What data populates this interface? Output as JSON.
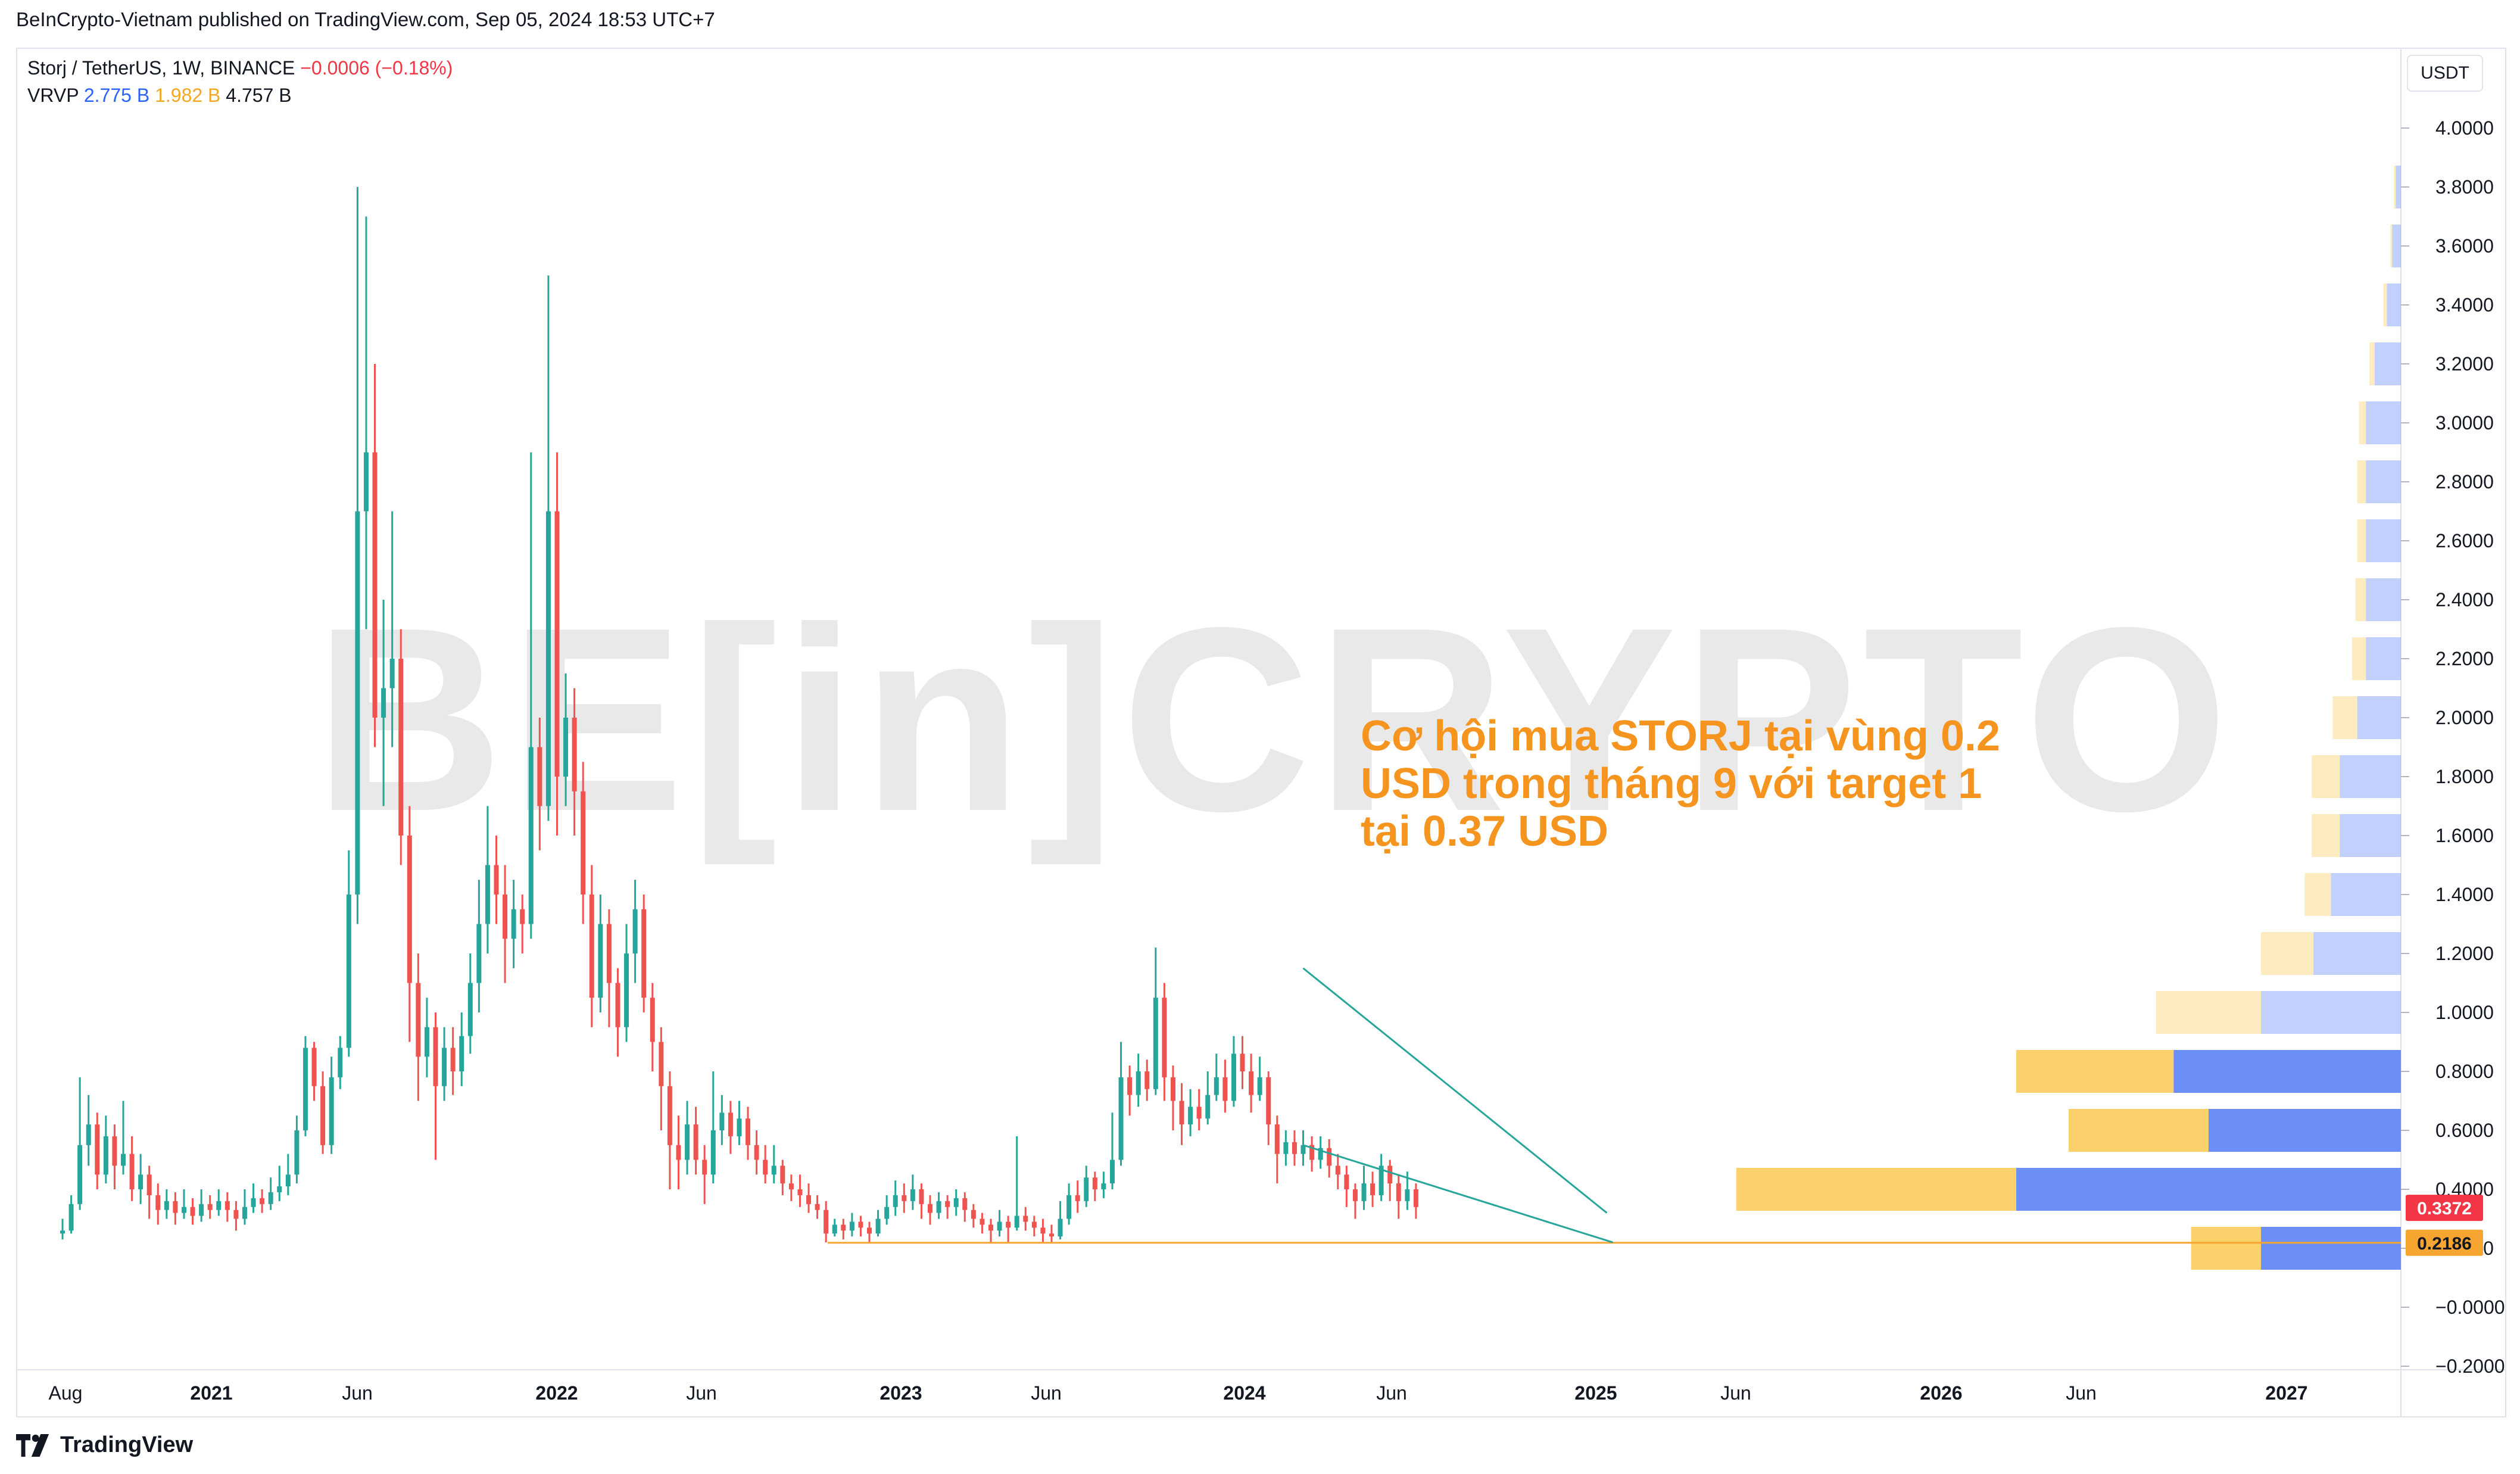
{
  "header": {
    "published": "BeInCrypto-Vietnam published on TradingView.com, Sep 05, 2024 18:53 UTC+7"
  },
  "legend": {
    "symbol": "Storj / TetherUS, 1W, BINANCE",
    "change": "−0.0006 (−0.18%)",
    "indicator": "VRVP",
    "vol_up": "2.775 B",
    "vol_down": "1.982 B",
    "vol_total": "4.757 B"
  },
  "currency": "USDT",
  "watermark": "BE[in]CRYPTO",
  "annotation": {
    "line1": "Cơ hội mua STORJ tại vùng 0.2",
    "line2": "USD trong tháng 9 với target 1",
    "line3": "tại 0.37 USD"
  },
  "footer": {
    "brand": "TradingView"
  },
  "colors": {
    "up": "#26a69a",
    "down": "#ef5350",
    "vp_up": "#6b8ff7",
    "vp_down": "#fcd16b",
    "support": "#f7a531",
    "wedge": "#26a69a",
    "annotation": "#f5951f"
  },
  "chart_data": {
    "type": "candlestick",
    "symbol": "STORJ/USDT",
    "interval": "1W",
    "ylim": [
      -0.2,
      4.0
    ],
    "y_ticks": [
      "4.0000",
      "3.8000",
      "3.6000",
      "3.4000",
      "3.2000",
      "3.0000",
      "2.8000",
      "2.6000",
      "2.4000",
      "2.2000",
      "2.0000",
      "1.8000",
      "1.6000",
      "1.4000",
      "1.2000",
      "1.0000",
      "0.8000",
      "0.6000",
      "0.4000",
      "0.2000",
      "−0.0000",
      "−0.2000"
    ],
    "x_ticks": [
      "Aug",
      "2021",
      "Jun",
      "2022",
      "Jun",
      "2023",
      "Jun",
      "2024",
      "Jun",
      "2025",
      "Jun",
      "2026",
      "Jun",
      "2027"
    ],
    "last_price": "0.3372",
    "support_price": "0.2186",
    "support_level": 0.2186,
    "candles_approx": [
      [
        0.25,
        0.26,
        0.3,
        0.23
      ],
      [
        0.26,
        0.35,
        0.38,
        0.25
      ],
      [
        0.35,
        0.55,
        0.78,
        0.33
      ],
      [
        0.55,
        0.62,
        0.72,
        0.48
      ],
      [
        0.62,
        0.45,
        0.66,
        0.4
      ],
      [
        0.45,
        0.58,
        0.65,
        0.42
      ],
      [
        0.58,
        0.48,
        0.62,
        0.4
      ],
      [
        0.48,
        0.52,
        0.7,
        0.45
      ],
      [
        0.52,
        0.4,
        0.58,
        0.36
      ],
      [
        0.4,
        0.45,
        0.52,
        0.35
      ],
      [
        0.45,
        0.38,
        0.48,
        0.3
      ],
      [
        0.38,
        0.33,
        0.42,
        0.28
      ],
      [
        0.33,
        0.36,
        0.4,
        0.3
      ],
      [
        0.36,
        0.32,
        0.39,
        0.28
      ],
      [
        0.32,
        0.34,
        0.4,
        0.3
      ],
      [
        0.34,
        0.31,
        0.37,
        0.28
      ],
      [
        0.31,
        0.35,
        0.4,
        0.29
      ],
      [
        0.35,
        0.33,
        0.38,
        0.3
      ],
      [
        0.33,
        0.36,
        0.4,
        0.31
      ],
      [
        0.36,
        0.33,
        0.39,
        0.29
      ],
      [
        0.33,
        0.3,
        0.36,
        0.26
      ],
      [
        0.3,
        0.34,
        0.4,
        0.28
      ],
      [
        0.34,
        0.37,
        0.42,
        0.32
      ],
      [
        0.37,
        0.35,
        0.4,
        0.32
      ],
      [
        0.35,
        0.39,
        0.44,
        0.33
      ],
      [
        0.39,
        0.41,
        0.48,
        0.36
      ],
      [
        0.41,
        0.45,
        0.52,
        0.38
      ],
      [
        0.45,
        0.6,
        0.65,
        0.42
      ],
      [
        0.6,
        0.88,
        0.92,
        0.58
      ],
      [
        0.88,
        0.75,
        0.9,
        0.7
      ],
      [
        0.75,
        0.55,
        0.8,
        0.52
      ],
      [
        0.55,
        0.78,
        0.85,
        0.52
      ],
      [
        0.78,
        0.88,
        0.92,
        0.74
      ],
      [
        0.88,
        1.4,
        1.55,
        0.85
      ],
      [
        1.4,
        2.7,
        3.8,
        1.3
      ],
      [
        2.7,
        2.9,
        3.7,
        2.3
      ],
      [
        2.9,
        2.0,
        3.2,
        1.9
      ],
      [
        2.0,
        2.1,
        2.4,
        1.7
      ],
      [
        2.1,
        2.2,
        2.7,
        1.9
      ],
      [
        2.2,
        1.6,
        2.3,
        1.5
      ],
      [
        1.6,
        1.1,
        1.7,
        0.9
      ],
      [
        1.1,
        0.85,
        1.2,
        0.7
      ],
      [
        0.85,
        0.95,
        1.05,
        0.78
      ],
      [
        0.95,
        0.75,
        1.0,
        0.5
      ],
      [
        0.75,
        0.88,
        0.95,
        0.7
      ],
      [
        0.88,
        0.8,
        0.95,
        0.72
      ],
      [
        0.8,
        0.92,
        1.0,
        0.75
      ],
      [
        0.92,
        1.1,
        1.2,
        0.86
      ],
      [
        1.1,
        1.3,
        1.45,
        1.0
      ],
      [
        1.3,
        1.5,
        1.7,
        1.2
      ],
      [
        1.5,
        1.4,
        1.6,
        1.3
      ],
      [
        1.4,
        1.25,
        1.5,
        1.1
      ],
      [
        1.25,
        1.35,
        1.45,
        1.15
      ],
      [
        1.35,
        1.3,
        1.4,
        1.2
      ],
      [
        1.3,
        1.9,
        2.9,
        1.25
      ],
      [
        1.9,
        1.7,
        2.0,
        1.55
      ],
      [
        1.7,
        2.7,
        3.5,
        1.65
      ],
      [
        2.7,
        1.8,
        2.9,
        1.6
      ],
      [
        1.8,
        2.0,
        2.15,
        1.7
      ],
      [
        2.0,
        1.75,
        2.1,
        1.6
      ],
      [
        1.75,
        1.4,
        1.85,
        1.3
      ],
      [
        1.4,
        1.05,
        1.5,
        0.95
      ],
      [
        1.05,
        1.3,
        1.4,
        1.0
      ],
      [
        1.3,
        1.1,
        1.35,
        0.95
      ],
      [
        1.1,
        0.95,
        1.15,
        0.85
      ],
      [
        0.95,
        1.2,
        1.3,
        0.9
      ],
      [
        1.2,
        1.35,
        1.45,
        1.1
      ],
      [
        1.35,
        1.05,
        1.4,
        1.0
      ],
      [
        1.05,
        0.9,
        1.1,
        0.8
      ],
      [
        0.9,
        0.75,
        0.95,
        0.6
      ],
      [
        0.75,
        0.55,
        0.8,
        0.4
      ],
      [
        0.55,
        0.5,
        0.65,
        0.4
      ],
      [
        0.5,
        0.62,
        0.7,
        0.45
      ],
      [
        0.62,
        0.5,
        0.68,
        0.45
      ],
      [
        0.5,
        0.45,
        0.55,
        0.35
      ],
      [
        0.45,
        0.6,
        0.8,
        0.42
      ],
      [
        0.6,
        0.66,
        0.72,
        0.55
      ],
      [
        0.66,
        0.58,
        0.7,
        0.52
      ],
      [
        0.58,
        0.64,
        0.7,
        0.55
      ],
      [
        0.64,
        0.55,
        0.68,
        0.5
      ],
      [
        0.55,
        0.5,
        0.6,
        0.45
      ],
      [
        0.5,
        0.45,
        0.55,
        0.42
      ],
      [
        0.45,
        0.48,
        0.55,
        0.42
      ],
      [
        0.48,
        0.42,
        0.5,
        0.38
      ],
      [
        0.42,
        0.4,
        0.45,
        0.36
      ],
      [
        0.4,
        0.38,
        0.45,
        0.34
      ],
      [
        0.38,
        0.35,
        0.42,
        0.32
      ],
      [
        0.35,
        0.33,
        0.38,
        0.3
      ],
      [
        0.33,
        0.25,
        0.36,
        0.22
      ],
      [
        0.25,
        0.28,
        0.3,
        0.24
      ],
      [
        0.28,
        0.26,
        0.3,
        0.23
      ],
      [
        0.26,
        0.29,
        0.32,
        0.24
      ],
      [
        0.29,
        0.27,
        0.31,
        0.24
      ],
      [
        0.27,
        0.25,
        0.29,
        0.22
      ],
      [
        0.25,
        0.3,
        0.33,
        0.24
      ],
      [
        0.3,
        0.34,
        0.38,
        0.28
      ],
      [
        0.34,
        0.38,
        0.43,
        0.31
      ],
      [
        0.38,
        0.36,
        0.42,
        0.32
      ],
      [
        0.36,
        0.4,
        0.45,
        0.33
      ],
      [
        0.4,
        0.35,
        0.42,
        0.3
      ],
      [
        0.35,
        0.32,
        0.38,
        0.28
      ],
      [
        0.32,
        0.36,
        0.39,
        0.3
      ],
      [
        0.36,
        0.34,
        0.38,
        0.3
      ],
      [
        0.34,
        0.37,
        0.4,
        0.31
      ],
      [
        0.37,
        0.33,
        0.39,
        0.29
      ],
      [
        0.33,
        0.3,
        0.35,
        0.27
      ],
      [
        0.3,
        0.28,
        0.32,
        0.25
      ],
      [
        0.28,
        0.26,
        0.3,
        0.22
      ],
      [
        0.26,
        0.29,
        0.33,
        0.24
      ],
      [
        0.29,
        0.27,
        0.31,
        0.22
      ],
      [
        0.27,
        0.31,
        0.58,
        0.26
      ],
      [
        0.31,
        0.29,
        0.34,
        0.26
      ],
      [
        0.29,
        0.27,
        0.31,
        0.24
      ],
      [
        0.27,
        0.25,
        0.3,
        0.22
      ],
      [
        0.25,
        0.24,
        0.28,
        0.22
      ],
      [
        0.24,
        0.3,
        0.36,
        0.23
      ],
      [
        0.3,
        0.38,
        0.42,
        0.28
      ],
      [
        0.38,
        0.36,
        0.43,
        0.32
      ],
      [
        0.36,
        0.44,
        0.48,
        0.34
      ],
      [
        0.44,
        0.4,
        0.46,
        0.36
      ],
      [
        0.4,
        0.42,
        0.46,
        0.37
      ],
      [
        0.42,
        0.5,
        0.66,
        0.4
      ],
      [
        0.5,
        0.78,
        0.9,
        0.48
      ],
      [
        0.78,
        0.72,
        0.82,
        0.65
      ],
      [
        0.72,
        0.8,
        0.86,
        0.68
      ],
      [
        0.8,
        0.74,
        0.84,
        0.7
      ],
      [
        0.74,
        1.05,
        1.22,
        0.72
      ],
      [
        1.05,
        0.78,
        1.1,
        0.7
      ],
      [
        0.78,
        0.7,
        0.82,
        0.6
      ],
      [
        0.7,
        0.62,
        0.76,
        0.55
      ],
      [
        0.62,
        0.68,
        0.74,
        0.58
      ],
      [
        0.68,
        0.64,
        0.74,
        0.6
      ],
      [
        0.64,
        0.72,
        0.8,
        0.62
      ],
      [
        0.72,
        0.78,
        0.86,
        0.7
      ],
      [
        0.78,
        0.7,
        0.84,
        0.66
      ],
      [
        0.7,
        0.86,
        0.92,
        0.68
      ],
      [
        0.86,
        0.8,
        0.92,
        0.74
      ],
      [
        0.8,
        0.72,
        0.86,
        0.66
      ],
      [
        0.72,
        0.78,
        0.85,
        0.7
      ],
      [
        0.78,
        0.62,
        0.8,
        0.55
      ],
      [
        0.62,
        0.52,
        0.65,
        0.42
      ],
      [
        0.52,
        0.56,
        0.6,
        0.48
      ],
      [
        0.56,
        0.52,
        0.6,
        0.48
      ],
      [
        0.52,
        0.55,
        0.6,
        0.48
      ],
      [
        0.55,
        0.5,
        0.58,
        0.46
      ],
      [
        0.5,
        0.54,
        0.58,
        0.47
      ],
      [
        0.54,
        0.48,
        0.57,
        0.44
      ],
      [
        0.48,
        0.45,
        0.52,
        0.4
      ],
      [
        0.45,
        0.4,
        0.48,
        0.34
      ],
      [
        0.4,
        0.36,
        0.42,
        0.3
      ],
      [
        0.36,
        0.42,
        0.48,
        0.33
      ],
      [
        0.42,
        0.38,
        0.46,
        0.34
      ],
      [
        0.38,
        0.48,
        0.52,
        0.36
      ],
      [
        0.48,
        0.42,
        0.5,
        0.36
      ],
      [
        0.42,
        0.36,
        0.45,
        0.3
      ],
      [
        0.36,
        0.4,
        0.46,
        0.33
      ],
      [
        0.4,
        0.34,
        0.42,
        0.3
      ]
    ],
    "volume_profile": [
      {
        "price": 0.2,
        "up": 0.08,
        "down": 0.04
      },
      {
        "price": 0.4,
        "up": 0.22,
        "down": 0.16
      },
      {
        "price": 0.6,
        "up": 0.11,
        "down": 0.08
      },
      {
        "price": 0.8,
        "up": 0.13,
        "down": 0.09
      },
      {
        "price": 1.0,
        "up": 0.08,
        "down": 0.06
      },
      {
        "price": 1.2,
        "up": 0.05,
        "down": 0.03
      },
      {
        "price": 1.4,
        "up": 0.04,
        "down": 0.015
      },
      {
        "price": 1.6,
        "up": 0.035,
        "down": 0.016
      },
      {
        "price": 1.8,
        "up": 0.035,
        "down": 0.016
      },
      {
        "price": 2.0,
        "up": 0.025,
        "down": 0.014
      },
      {
        "price": 2.2,
        "up": 0.02,
        "down": 0.008
      },
      {
        "price": 2.4,
        "up": 0.02,
        "down": 0.006
      },
      {
        "price": 2.6,
        "up": 0.02,
        "down": 0.005
      },
      {
        "price": 2.8,
        "up": 0.02,
        "down": 0.005
      },
      {
        "price": 3.0,
        "up": 0.02,
        "down": 0.004
      },
      {
        "price": 3.2,
        "up": 0.015,
        "down": 0.003
      },
      {
        "price": 3.4,
        "up": 0.008,
        "down": 0.002
      },
      {
        "price": 3.6,
        "up": 0.005,
        "down": 0.001
      },
      {
        "price": 3.8,
        "up": 0.003,
        "down": 0.001
      }
    ],
    "falling_wedge": {
      "upper": [
        [
          143,
          1.15
        ],
        [
          178,
          0.32
        ]
      ],
      "lower": [
        [
          143,
          0.55
        ],
        [
          178,
          0.22
        ]
      ]
    }
  }
}
